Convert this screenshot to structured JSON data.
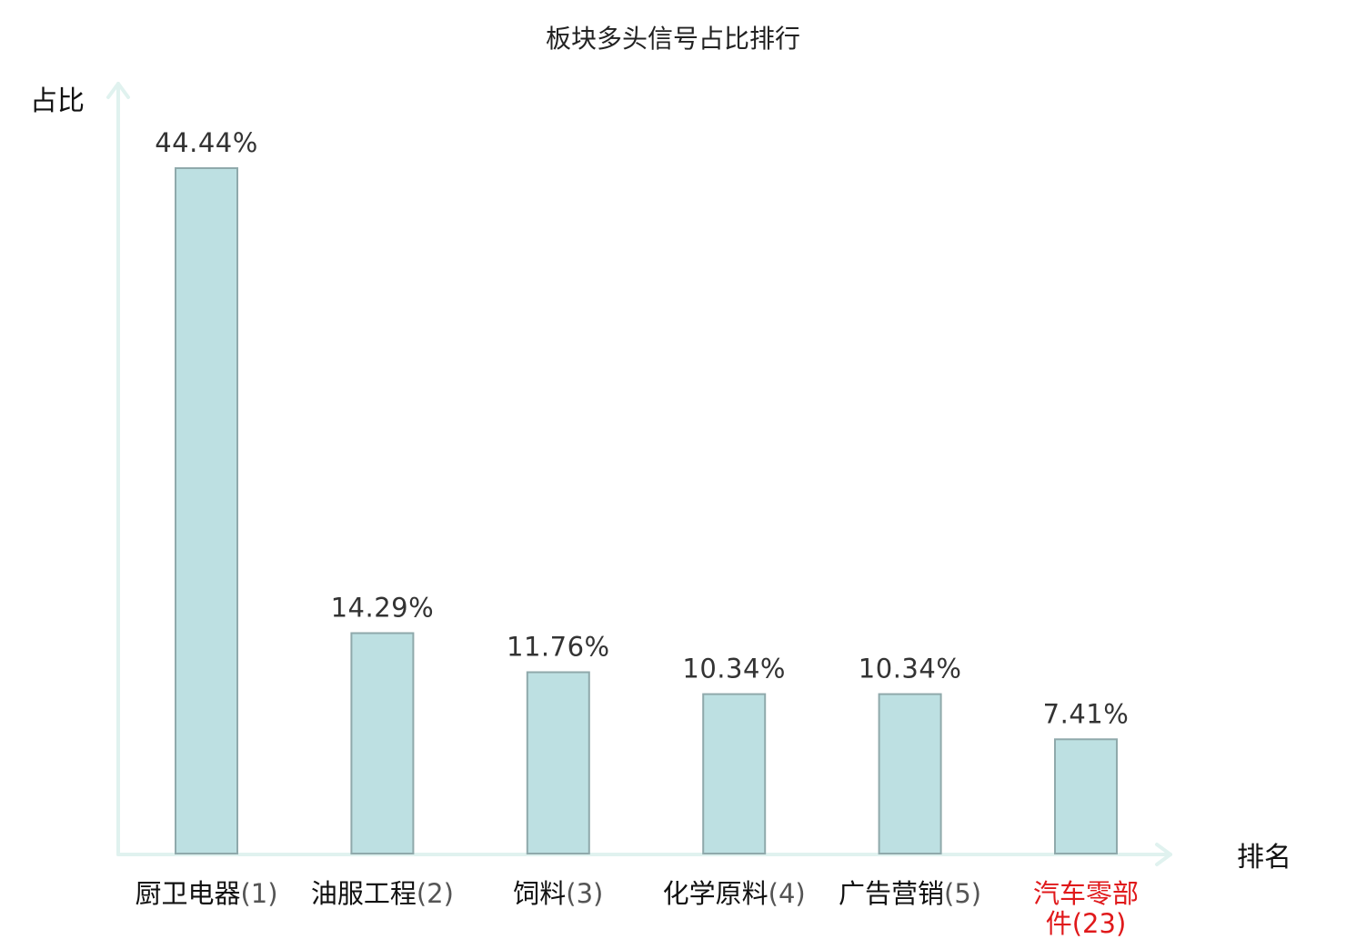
{
  "chart_data": {
    "type": "bar",
    "title": "板块多头信号占比排行",
    "ylabel": "占比",
    "xlabel": "排名",
    "categories": [
      {
        "name": "厨卫电器",
        "rank": "(1)",
        "highlight": false
      },
      {
        "name": "油服工程",
        "rank": "(2)",
        "highlight": false
      },
      {
        "name": "饲料",
        "rank": "(3)",
        "highlight": false
      },
      {
        "name": "化学原料",
        "rank": "(4)",
        "highlight": false
      },
      {
        "name": "广告营销",
        "rank": "(5)",
        "highlight": false
      },
      {
        "name": "汽车零部件",
        "rank": "(23)",
        "highlight": true
      }
    ],
    "values": [
      44.44,
      14.29,
      11.76,
      10.34,
      10.34,
      7.41
    ],
    "value_labels": [
      "44.44%",
      "14.29%",
      "11.76%",
      "10.34%",
      "10.34%",
      "7.41%"
    ],
    "ylim": [
      0,
      44.44
    ],
    "grid": false,
    "legend": "none"
  },
  "colors": {
    "bar_fill": "#bde0e2",
    "bar_stroke": "#8fa9ab",
    "axis": "#e0f2ef",
    "highlight_text": "#e0191b",
    "normal_text": "#111111",
    "rank_text": "#555555",
    "value_text": "#333333"
  }
}
